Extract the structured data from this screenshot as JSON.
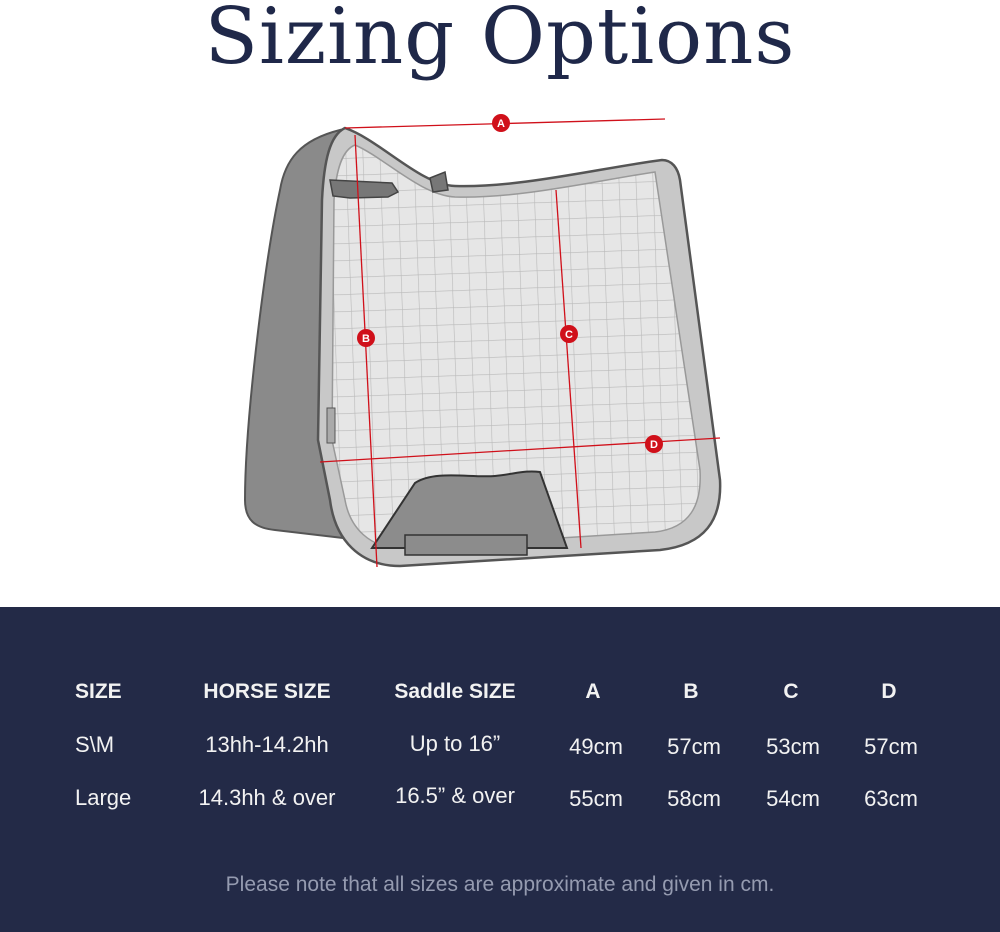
{
  "title": "Sizing Options",
  "diagram": {
    "labels": [
      "A",
      "B",
      "C",
      "D"
    ],
    "accent_color": "#d0101a"
  },
  "table": {
    "headers": [
      "SIZE",
      "HORSE SIZE",
      "Saddle SIZE",
      "A",
      "B",
      "C",
      "D"
    ],
    "rows": [
      [
        "S\\M",
        "13hh-14.2hh",
        "Up to 16”",
        "49cm",
        "57cm",
        "53cm",
        "57cm"
      ],
      [
        "Large",
        "14.3hh & over",
        "16.5” & over",
        "55cm",
        "58cm",
        "54cm",
        "63cm"
      ]
    ]
  },
  "note": "Please note that all sizes are approximate and given in cm.",
  "colors": {
    "band": "#232a47",
    "title": "#1f2849"
  }
}
